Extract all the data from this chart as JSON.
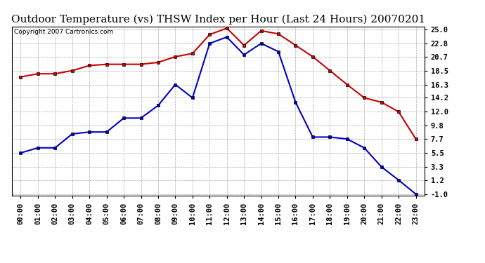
{
  "title": "Outdoor Temperature (vs) THSW Index per Hour (Last 24 Hours) 20070201",
  "copyright_text": "Copyright 2007 Cartronics.com",
  "hours": [
    "00:00",
    "01:00",
    "02:00",
    "03:00",
    "04:00",
    "05:00",
    "06:00",
    "07:00",
    "08:00",
    "09:00",
    "10:00",
    "11:00",
    "12:00",
    "13:00",
    "14:00",
    "15:00",
    "16:00",
    "17:00",
    "18:00",
    "19:00",
    "20:00",
    "21:00",
    "22:00",
    "23:00"
  ],
  "red_data": [
    17.5,
    18.0,
    18.0,
    18.5,
    19.3,
    19.5,
    19.5,
    19.5,
    19.8,
    20.7,
    21.2,
    24.2,
    25.2,
    22.5,
    24.8,
    24.3,
    22.5,
    20.7,
    18.5,
    16.3,
    14.2,
    13.5,
    12.0,
    7.7
  ],
  "blue_data": [
    5.5,
    6.3,
    6.3,
    8.5,
    8.8,
    8.8,
    11.0,
    11.0,
    13.0,
    16.3,
    14.2,
    22.8,
    23.8,
    21.0,
    22.8,
    21.5,
    13.5,
    8.0,
    8.0,
    7.7,
    6.3,
    3.3,
    1.2,
    -1.0
  ],
  "y_ticks": [
    25.0,
    22.8,
    20.7,
    18.5,
    16.3,
    14.2,
    12.0,
    9.8,
    7.7,
    5.5,
    3.3,
    1.2,
    -1.0
  ],
  "y_min": -1.0,
  "y_max": 25.0,
  "red_color": "#cc0000",
  "blue_color": "#0000cc",
  "grid_color": "#aaaaaa",
  "background_color": "#ffffff",
  "plot_bg_color": "#ffffff",
  "marker_size": 3,
  "line_width": 1.5,
  "title_fontsize": 11,
  "tick_fontsize": 7.5,
  "copyright_fontsize": 6.5
}
